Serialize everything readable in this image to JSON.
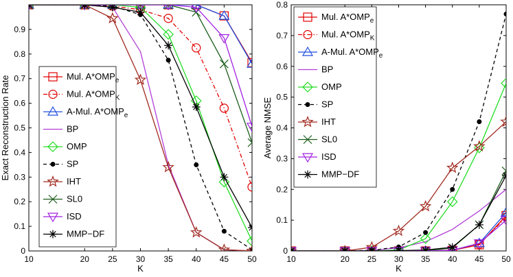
{
  "chart_data": [
    {
      "type": "line",
      "xlabel": "K",
      "ylabel": "Exact Reconstruction Rate",
      "xlim": [
        10,
        50
      ],
      "ylim": [
        0,
        1
      ],
      "xticks": [
        "10",
        "20",
        "25",
        "30",
        "35",
        "40",
        "45",
        "50"
      ],
      "yticks": [
        "0",
        "0.1",
        "0.2",
        "0.3",
        "0.4",
        "0.5",
        "0.6",
        "0.7",
        "0.8",
        "0.9"
      ],
      "legend_position": "lower-left",
      "x": [
        10,
        20,
        25,
        30,
        35,
        40,
        45,
        50
      ],
      "series": [
        {
          "name": "Mul. A*OMP",
          "sub": "e",
          "color": "#e00000",
          "dash": "",
          "marker": "square",
          "values": [
            1.0,
            1.0,
            1.0,
            1.0,
            1.0,
            1.0,
            0.955,
            0.765
          ]
        },
        {
          "name": "Mul. A*OMP",
          "sub": "K",
          "color": "#e00000",
          "dash": "6,3,1.5,3",
          "marker": "circle",
          "values": [
            1.0,
            1.0,
            0.995,
            0.98,
            0.945,
            0.825,
            0.58,
            0.26
          ]
        },
        {
          "name": "A-Mul. A*OMP",
          "sub": "e",
          "color": "#1f4fe0",
          "dash": "",
          "marker": "triangle",
          "values": [
            1.0,
            1.0,
            1.0,
            1.0,
            1.0,
            1.0,
            0.955,
            0.76
          ]
        },
        {
          "name": "BP",
          "sub": "",
          "color": "#b23cd6",
          "dash": "",
          "marker": "none",
          "values": [
            1.0,
            1.0,
            0.99,
            0.81,
            0.35,
            0.075,
            0.005,
            0.0
          ]
        },
        {
          "name": "OMP",
          "sub": "",
          "color": "#22dd22",
          "dash": "",
          "marker": "diamond",
          "values": [
            1.0,
            1.0,
            1.0,
            0.99,
            0.88,
            0.61,
            0.28,
            0.04
          ]
        },
        {
          "name": "SP",
          "sub": "",
          "color": "#000000",
          "dash": "5,4",
          "marker": "dot",
          "values": [
            1.0,
            1.0,
            0.995,
            0.96,
            0.775,
            0.35,
            0.08,
            0.005
          ]
        },
        {
          "name": "IHT",
          "sub": "",
          "color": "#a0291f",
          "dash": "",
          "marker": "star",
          "values": [
            1.0,
            1.0,
            0.945,
            0.695,
            0.34,
            0.075,
            0.005,
            0.0
          ]
        },
        {
          "name": "SL0",
          "sub": "",
          "color": "#1a5c1a",
          "dash": "",
          "marker": "x",
          "values": [
            1.0,
            1.0,
            1.0,
            1.0,
            1.0,
            0.97,
            0.76,
            0.44
          ]
        },
        {
          "name": "ISD",
          "sub": "",
          "color": "#a020e0",
          "dash": "",
          "marker": "triangle-down",
          "values": [
            1.0,
            1.0,
            1.0,
            1.0,
            1.0,
            0.99,
            0.865,
            0.505
          ]
        },
        {
          "name": "MMP−DF",
          "sub": "",
          "color": "#000000",
          "dash": "",
          "marker": "asterisk",
          "values": [
            1.0,
            1.0,
            0.99,
            0.97,
            0.835,
            0.585,
            0.3,
            0.095
          ]
        }
      ]
    },
    {
      "type": "line",
      "xlabel": "K",
      "ylabel": "Average NMSE",
      "xlim": [
        10,
        50
      ],
      "ylim": [
        0,
        0.8
      ],
      "xticks": [
        "10",
        "20",
        "25",
        "30",
        "35",
        "40",
        "45",
        "50"
      ],
      "yticks": [
        "0",
        "0.1",
        "0.2",
        "0.3",
        "0.4",
        "0.5",
        "0.6",
        "0.7",
        "0.8"
      ],
      "legend_position": "upper-left",
      "x": [
        10,
        20,
        25,
        30,
        35,
        40,
        45,
        50
      ],
      "series": [
        {
          "name": "Mul. A*OMP",
          "sub": "e",
          "color": "#e00000",
          "dash": "",
          "marker": "square",
          "values": [
            0,
            0,
            0,
            0,
            0,
            0.002,
            0.02,
            0.115
          ]
        },
        {
          "name": "Mul. A*OMP",
          "sub": "K",
          "color": "#e00000",
          "dash": "6,3,1.5,3",
          "marker": "circle",
          "values": [
            0,
            0,
            0,
            0,
            0,
            0.003,
            0.022,
            0.11
          ]
        },
        {
          "name": "A-Mul. A*OMP",
          "sub": "e",
          "color": "#1f4fe0",
          "dash": "",
          "marker": "triangle",
          "values": [
            0,
            0,
            0,
            0,
            0,
            0.002,
            0.025,
            0.125
          ]
        },
        {
          "name": "BP",
          "sub": "",
          "color": "#b23cd6",
          "dash": "",
          "marker": "none",
          "values": [
            0,
            0,
            0.002,
            0.01,
            0.03,
            0.07,
            0.13,
            0.2
          ]
        },
        {
          "name": "OMP",
          "sub": "",
          "color": "#22dd22",
          "dash": "",
          "marker": "diamond",
          "values": [
            0,
            0,
            0,
            0.003,
            0.04,
            0.16,
            0.335,
            0.545
          ]
        },
        {
          "name": "SP",
          "sub": "",
          "color": "#000000",
          "dash": "5,4",
          "marker": "dot",
          "values": [
            0,
            0,
            0.002,
            0.013,
            0.06,
            0.2,
            0.42,
            0.77
          ]
        },
        {
          "name": "IHT",
          "sub": "",
          "color": "#a0291f",
          "dash": "",
          "marker": "star",
          "values": [
            0,
            0,
            0.012,
            0.065,
            0.145,
            0.27,
            0.34,
            0.42
          ]
        },
        {
          "name": "SL0",
          "sub": "",
          "color": "#1a5c1a",
          "dash": "",
          "marker": "x",
          "values": [
            0,
            0,
            0,
            0,
            0,
            0.01,
            0.085,
            0.26
          ]
        },
        {
          "name": "ISD",
          "sub": "",
          "color": "#a020e0",
          "dash": "",
          "marker": "triangle-down",
          "values": [
            0,
            0,
            0,
            0,
            0,
            0.002,
            0.025,
            0.1
          ]
        },
        {
          "name": "MMP−DF",
          "sub": "",
          "color": "#000000",
          "dash": "",
          "marker": "asterisk",
          "values": [
            0,
            0,
            0,
            0.001,
            0.003,
            0.012,
            0.085,
            0.245
          ]
        }
      ]
    }
  ]
}
